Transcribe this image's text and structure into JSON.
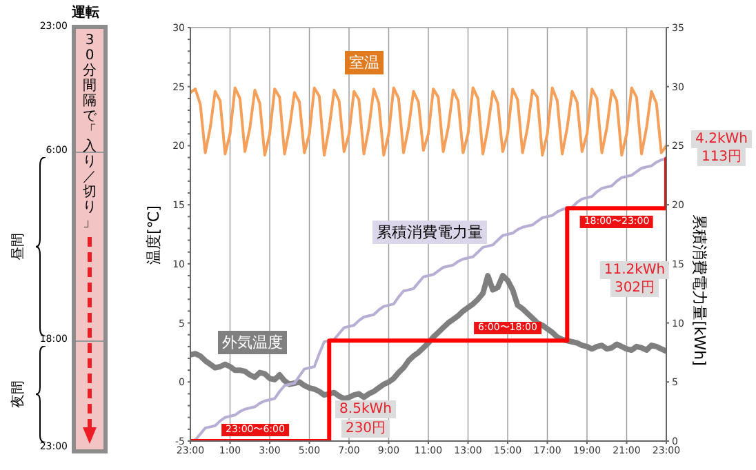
{
  "chart_data": [
    {
      "type": "other",
      "title": "運転",
      "annotations": [
        "30分間隔で「入り／切り」",
        "23:00",
        "6:00",
        "18:00",
        "23:00",
        "昼間",
        "夜間"
      ]
    },
    {
      "type": "line",
      "ylabel": "温度[℃]",
      "y2label": "累積消費電力量[kWh]",
      "ylim": [
        -5,
        30
      ],
      "y2lim": [
        0,
        35
      ],
      "grid": true,
      "categories": [
        "23:00",
        null,
        null,
        null,
        null,
        null,
        null,
        null,
        "1:00",
        null,
        null,
        null,
        null,
        null,
        null,
        null,
        "3:00",
        null,
        null,
        null,
        null,
        null,
        null,
        null,
        "5:00",
        null,
        null,
        null,
        null,
        null,
        null,
        null,
        "7:00",
        null,
        null,
        null,
        null,
        null,
        null,
        null,
        "9:00",
        null,
        null,
        null,
        null,
        null,
        null,
        null,
        "11:00",
        null,
        null,
        null,
        null,
        null,
        null,
        null,
        "13:00",
        null,
        null,
        null,
        null,
        null,
        null,
        null,
        "15:00",
        null,
        null,
        null,
        null,
        null,
        null,
        null,
        "17:00",
        null,
        null,
        null,
        null,
        null,
        null,
        null,
        "19:00",
        null,
        null,
        null,
        null,
        null,
        null,
        null,
        "21:00",
        null,
        null,
        null,
        null,
        null,
        null,
        null,
        "23:00"
      ],
      "yticks": [
        -5,
        {
          "value": -4,
          "label": null
        },
        {
          "value": -3,
          "label": null
        },
        {
          "value": -2,
          "label": null
        },
        {
          "value": -1,
          "label": null
        },
        0,
        {
          "value": 1,
          "label": null
        },
        {
          "value": 2,
          "label": null
        },
        {
          "value": 3,
          "label": null
        },
        {
          "value": 4,
          "label": null
        },
        5,
        {
          "value": 6,
          "label": null
        },
        {
          "value": 7,
          "label": null
        },
        {
          "value": 8,
          "label": null
        },
        {
          "value": 9,
          "label": null
        },
        10,
        {
          "value": 11,
          "label": null
        },
        {
          "value": 12,
          "label": null
        },
        {
          "value": 13,
          "label": null
        },
        {
          "value": 14,
          "label": null
        },
        15,
        {
          "value": 16,
          "label": null
        },
        {
          "value": 17,
          "label": null
        },
        {
          "value": 18,
          "label": null
        },
        {
          "value": 19,
          "label": null
        },
        20,
        {
          "value": 21,
          "label": null
        },
        {
          "value": 22,
          "label": null
        },
        {
          "value": 23,
          "label": null
        },
        {
          "value": 24,
          "label": null
        },
        25,
        {
          "value": 26,
          "label": null
        },
        {
          "value": 27,
          "label": null
        },
        {
          "value": 28,
          "label": null
        },
        {
          "value": 29,
          "label": null
        },
        30
      ],
      "y2ticks": [
        0,
        5,
        10,
        15,
        20,
        25,
        30,
        35
      ],
      "series": [
        {
          "name": "室温",
          "color": "#f5a05a",
          "values": [
            24.5,
            24.8,
            23.5,
            19.4,
            21.5,
            24.6,
            23.8,
            19.3,
            21,
            24.9,
            24,
            19.5,
            21.5,
            24.7,
            23.6,
            19.2,
            21,
            24.8,
            24.1,
            19.3,
            21.5,
            24.5,
            23.7,
            19.4,
            21,
            24.9,
            24.2,
            19.2,
            21.5,
            24.7,
            23.8,
            19.5,
            21,
            24.6,
            23.9,
            19.3,
            21.5,
            24.8,
            23.6,
            19.2,
            21,
            24.9,
            24,
            19.4,
            21.5,
            24.6,
            23.7,
            19.6,
            21,
            24.8,
            24.1,
            19.5,
            21.5,
            24.7,
            23.8,
            19.4,
            21,
            24.9,
            24,
            19.3,
            21.5,
            24.6,
            23.6,
            19.5,
            21,
            24.8,
            23.9,
            19.4,
            21.5,
            24.7,
            24.1,
            19.2,
            21,
            24.9,
            23.8,
            19.3,
            21.5,
            24.6,
            23.7,
            19.5,
            21,
            24.8,
            24,
            19.4,
            21.5,
            24.7,
            23.8,
            19.2,
            21,
            24.9,
            24.1,
            19.3,
            21.5,
            24.6,
            23.6,
            19.4,
            20
          ]
        },
        {
          "name": "外気温度",
          "color": "#7f7f7f",
          "values": [
            2.3,
            2.4,
            2.2,
            1.8,
            1.5,
            1.2,
            1.3,
            1.5,
            1.3,
            1,
            1,
            0.9,
            0.6,
            0.4,
            0.8,
            0.7,
            0.3,
            0.2,
            0.6,
            0.1,
            -0.2,
            -0.1,
            0,
            -0.3,
            -0.5,
            -0.6,
            -0.8,
            -1.1,
            -1,
            -0.9,
            -1.2,
            -1.4,
            -1.3,
            -1.1,
            -1,
            -1.3,
            -1,
            -0.8,
            -0.5,
            -0.2,
            0,
            0.3,
            0.8,
            1.2,
            1.8,
            2.2,
            2.5,
            2.9,
            3.3,
            3.8,
            4.2,
            4.6,
            5,
            5.3,
            5.6,
            6,
            6.3,
            6.6,
            7,
            7.5,
            9,
            7.8,
            8,
            9,
            8.6,
            7.8,
            6.5,
            6.2,
            5.8,
            5.4,
            5,
            4.8,
            4.5,
            4.2,
            3.8,
            3.6,
            3.5,
            3.4,
            3.3,
            3.1,
            3,
            2.8,
            3,
            3.1,
            2.8,
            2.9,
            3.2,
            3,
            2.8,
            2.7,
            3,
            2.9,
            2.7,
            3.1,
            3,
            2.8,
            2.6
          ]
        },
        {
          "name": "累積消費電力量",
          "color": "#b8aed4",
          "axis": "y2",
          "values": [
            0,
            0.1,
            0.6,
            1.1,
            1.2,
            1.3,
            1.7,
            2,
            2.1,
            2.2,
            2.5,
            2.7,
            2.8,
            2.9,
            3.2,
            3.4,
            3.5,
            3.6,
            4.2,
            4.7,
            4.8,
            4.9,
            5.5,
            6.1,
            6.2,
            6.3,
            7.4,
            8.4,
            8.5,
            8.6,
            9.1,
            9.6,
            9.7,
            9.8,
            10.2,
            10.5,
            10.6,
            10.7,
            11.1,
            11.4,
            11.5,
            11.6,
            12.2,
            12.7,
            12.8,
            12.9,
            13.4,
            13.9,
            14,
            14.1,
            14.4,
            14.7,
            14.8,
            14.9,
            15.2,
            15.4,
            15.5,
            15.6,
            16,
            16.4,
            16.5,
            16.6,
            17,
            17.4,
            17.5,
            17.6,
            17.9,
            18.1,
            18.2,
            18.3,
            18.6,
            18.9,
            19,
            19.1,
            19.4,
            19.6,
            19.7,
            19.8,
            20.2,
            20.5,
            20.6,
            20.7,
            21.1,
            21.4,
            21.5,
            21.6,
            22,
            22.3,
            22.4,
            22.5,
            22.8,
            23.1,
            23.2,
            23.3,
            23.6,
            23.8,
            23.9
          ]
        },
        {
          "type": "step",
          "color": "#ff0000",
          "axis": "y2",
          "values": [
            0,
            0,
            0,
            0,
            0,
            0,
            0,
            0,
            0,
            0,
            0,
            0,
            0,
            0,
            0,
            0,
            0,
            0,
            0,
            0,
            0,
            0,
            0,
            0,
            0,
            0,
            0,
            0,
            8.5,
            8.5,
            8.5,
            8.5,
            8.5,
            8.5,
            8.5,
            8.5,
            8.5,
            8.5,
            8.5,
            8.5,
            8.5,
            8.5,
            8.5,
            8.5,
            8.5,
            8.5,
            8.5,
            8.5,
            8.5,
            8.5,
            8.5,
            8.5,
            8.5,
            8.5,
            8.5,
            8.5,
            8.5,
            8.5,
            8.5,
            8.5,
            8.5,
            8.5,
            8.5,
            8.5,
            8.5,
            8.5,
            8.5,
            8.5,
            8.5,
            8.5,
            8.5,
            8.5,
            8.5,
            8.5,
            8.5,
            8.5,
            19.7,
            19.7,
            19.7,
            19.7,
            19.7,
            19.7,
            19.7,
            19.7,
            19.7,
            19.7,
            19.7,
            19.7,
            19.7,
            19.7,
            19.7,
            19.7,
            19.7,
            19.7,
            19.7,
            19.7,
            23.9
          ]
        }
      ],
      "annotations": [
        "23:00〜6:00",
        "6:00〜18:00",
        "18:00〜23:00",
        "8.5kWh",
        "230円",
        "11.2kWh",
        "302円",
        "4.2kWh",
        "113円"
      ]
    }
  ]
}
